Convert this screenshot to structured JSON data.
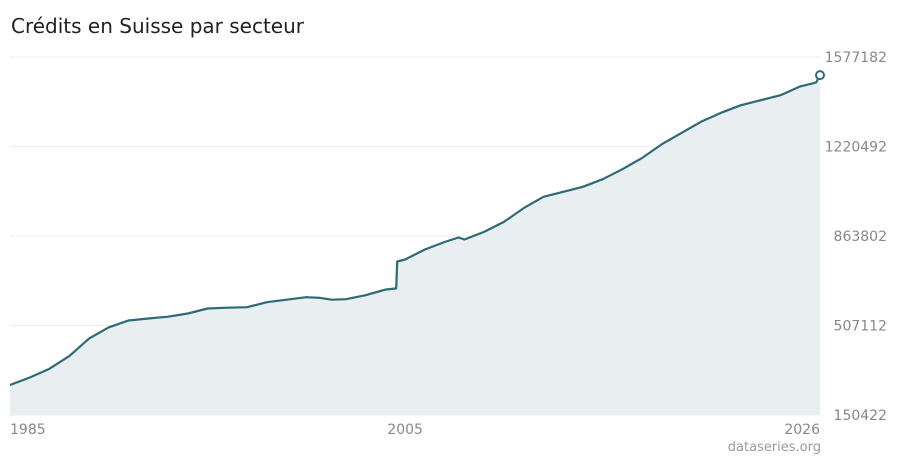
{
  "chart_data": {
    "type": "area",
    "title": "Crédits en Suisse par secteur",
    "xlabel": "",
    "ylabel": "",
    "grid": true,
    "y_ticks": [
      "1577182",
      "1220492",
      "863802",
      "507112",
      "150422"
    ],
    "x_ticks": [
      "1985",
      "2005",
      "2026"
    ],
    "ylim": [
      150422,
      1577182
    ],
    "xlim": [
      1985,
      2026
    ],
    "series": [
      {
        "x": [
          1985.0,
          1986.0,
          1987.0,
          1988.0,
          1989.0,
          1990.0,
          1991.0,
          1992.0,
          1993.0,
          1994.0,
          1995.0,
          1996.0,
          1997.0,
          1998.0,
          1999.0,
          2000.0,
          2000.7,
          2001.3,
          2002.0,
          2003.0,
          2004.0,
          2004.55,
          2004.6,
          2005.0,
          2006.0,
          2007.0,
          2007.7,
          2008.0,
          2009.0,
          2010.0,
          2011.0,
          2012.0,
          2013.0,
          2014.0,
          2015.0,
          2016.0,
          2017.0,
          2018.0,
          2019.0,
          2020.0,
          2021.0,
          2022.0,
          2023.0,
          2024.0,
          2025.0,
          2025.8,
          2026.0
        ],
        "y": [
          270000,
          300000,
          335000,
          385000,
          455000,
          500000,
          527000,
          535000,
          542000,
          555000,
          575000,
          578000,
          580000,
          600000,
          610000,
          620000,
          617000,
          610000,
          612000,
          628000,
          650000,
          655000,
          762000,
          770000,
          810000,
          840000,
          858000,
          850000,
          880000,
          920000,
          975000,
          1020000,
          1040000,
          1060000,
          1090000,
          1130000,
          1175000,
          1230000,
          1275000,
          1320000,
          1355000,
          1385000,
          1405000,
          1425000,
          1460000,
          1475000,
          1505000
        ]
      }
    ]
  },
  "source_label": "dataseries.org",
  "colors": {
    "line": "#2e6a76",
    "area": "#e9eef1",
    "grid": "#eeeeee",
    "ticks": "#888888"
  }
}
